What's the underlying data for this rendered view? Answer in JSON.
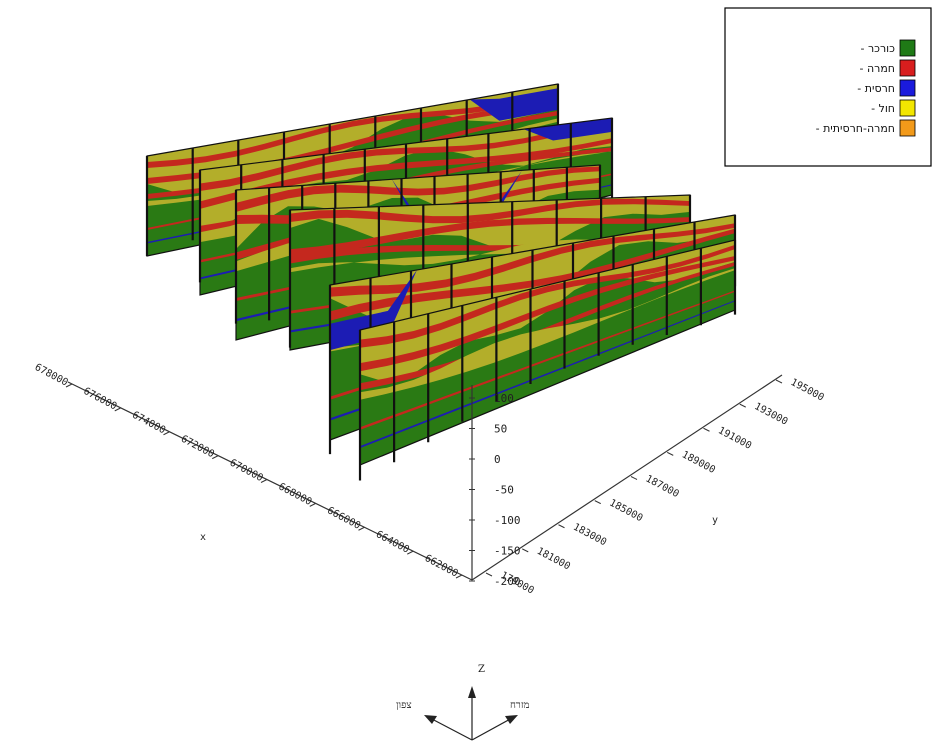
{
  "legend": {
    "items": [
      {
        "label": "- כורכר",
        "color": "#1f7a16"
      },
      {
        "label": "- חמרה",
        "color": "#d81e1e"
      },
      {
        "label": "- חרסית",
        "color": "#1a1adc"
      },
      {
        "label": "- חול",
        "color": "#f2e600"
      },
      {
        "label": "- חמרה-חרסיתית",
        "color": "#f29a1a"
      }
    ]
  },
  "section_colors": {
    "green": "#2a7a14",
    "olive": "#b3ae2a",
    "red": "#c4281e",
    "blue": "#1c1cb4",
    "post": "#111111"
  },
  "axes": {
    "left_ticks": [
      "678000",
      "676000",
      "674000",
      "672000",
      "670000",
      "668000",
      "666000",
      "664000",
      "662000"
    ],
    "left_axis_letter": "x",
    "right_ticks": [
      "195000",
      "193000",
      "191000",
      "189000",
      "187000",
      "185000",
      "183000",
      "181000",
      "179000"
    ],
    "right_axis_letter": "y",
    "z_ticks": [
      "100",
      "50",
      "0",
      "-50",
      "-100",
      "-150",
      "-200"
    ]
  },
  "compass": {
    "up": "Z",
    "left": "צפון",
    "right": "מזרח"
  }
}
